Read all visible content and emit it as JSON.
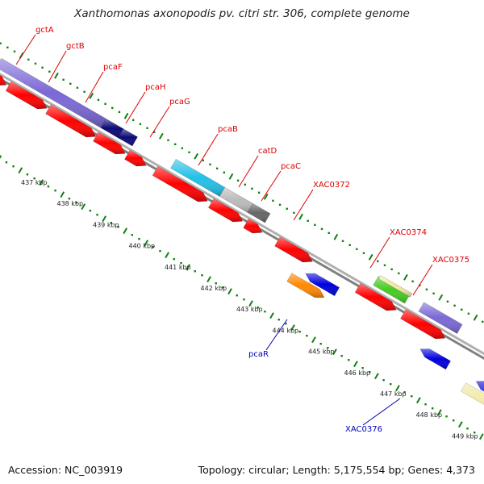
{
  "title": "Xanthomonas axonopodis pv. citri str. 306, complete genome",
  "footer": {
    "accession": "Accession: NC_003919",
    "topology": "Topology: circular; Length: 5,175,554 bp; Genes: 4,373"
  },
  "colors": {
    "red_label": "#dd0000",
    "blue_label": "#0000bb",
    "backbone": "#888888",
    "tick": "#108010"
  },
  "tick_labels": [
    "437 kbp",
    "438 kbp",
    "439 kbp",
    "440 kbp",
    "441 kbp",
    "442 kbp",
    "443 kbp",
    "444 kbp",
    "445 kbp",
    "446 kbp",
    "447 kbp",
    "448 kbp",
    "449 kbp"
  ],
  "genes_top": [
    {
      "name": "gctA",
      "color": "#7b68d6"
    },
    {
      "name": "gctB",
      "color": "#7b68d6"
    },
    {
      "name": "pcaF",
      "color": "#7b68d6"
    },
    {
      "name": "pcaH",
      "color": "#0a0a78"
    },
    {
      "name": "pcaG",
      "color": "#0a0a78"
    },
    {
      "name": "pcaB",
      "color": "#22c0e8"
    },
    {
      "name": "catD",
      "color": "#bbbbbb"
    },
    {
      "name": "pcaC",
      "color": "#666666"
    },
    {
      "name": "XAC0372",
      "color": "#ff0000"
    },
    {
      "name": "XAC0374",
      "color": "#44cc22"
    },
    {
      "name": "XAC0375",
      "color": "#7b68d6"
    }
  ],
  "genes_bottom": [
    {
      "name": "pcaR",
      "color": "#ff8800"
    },
    {
      "name": "XAC0376",
      "color": "#f0e8a0"
    }
  ]
}
